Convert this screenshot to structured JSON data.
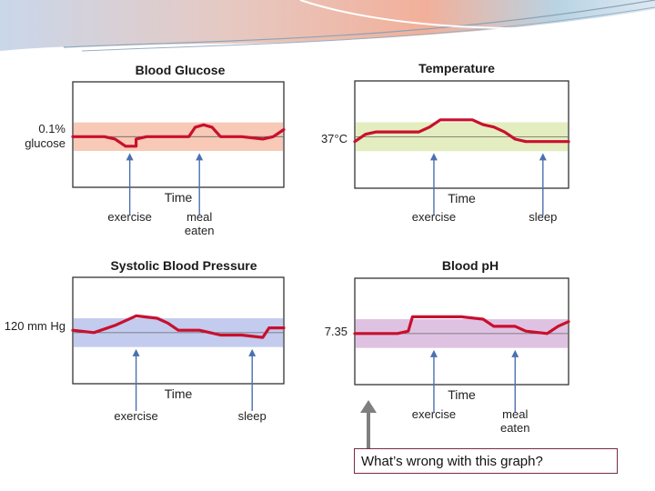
{
  "slide": {
    "question": "What’s wrong with this graph?",
    "colors": {
      "curve": "#c8102e",
      "band_glucose": "#f7c9b6",
      "band_temperature": "#e3edc0",
      "band_pressure": "#c3cbee",
      "band_ph": "#dfc2e2",
      "arrow": "#4a70b0",
      "pointer_arrow": "#7f7f7f"
    }
  },
  "panels": [
    {
      "id": "glucose",
      "title": "Blood Glucose",
      "set_point_label_line1": "0.1%",
      "set_point_label_line2": "glucose",
      "axis_label": "Time",
      "events": [
        {
          "label_line1": "exercise",
          "label_line2": "",
          "t": 0.27
        },
        {
          "label_line1": "meal",
          "label_line2": "eaten",
          "t": 0.6
        }
      ],
      "chart_data": {
        "type": "line",
        "title": "Blood Glucose",
        "xlabel": "Time",
        "ylabel": "0.1% glucose",
        "ylim": [
          -1,
          1
        ],
        "x": [
          0,
          0.15,
          0.2,
          0.25,
          0.3,
          0.3,
          0.35,
          0.45,
          0.55,
          0.58,
          0.62,
          0.66,
          0.7,
          0.8,
          0.9,
          0.95,
          1.0
        ],
        "y": [
          0,
          0,
          -0.05,
          -0.2,
          -0.2,
          -0.05,
          0,
          0,
          0,
          0.2,
          0.25,
          0.2,
          0,
          0,
          -0.05,
          0,
          0.15
        ],
        "band": [
          -0.3,
          0.3
        ]
      }
    },
    {
      "id": "temperature",
      "title": "Temperature",
      "set_point_label_line1": "37°C",
      "set_point_label_line2": "",
      "axis_label": "Time",
      "events": [
        {
          "label_line1": "exercise",
          "label_line2": "",
          "t": 0.37
        },
        {
          "label_line1": "sleep",
          "label_line2": "",
          "t": 0.88
        }
      ],
      "chart_data": {
        "type": "line",
        "title": "Temperature",
        "xlabel": "Time",
        "ylabel": "37°C",
        "ylim": [
          -1,
          1
        ],
        "x": [
          0,
          0.05,
          0.1,
          0.3,
          0.35,
          0.4,
          0.55,
          0.6,
          0.65,
          0.7,
          0.75,
          0.8,
          1.0
        ],
        "y": [
          -0.1,
          0.05,
          0.1,
          0.1,
          0.2,
          0.35,
          0.35,
          0.25,
          0.2,
          0.1,
          -0.05,
          -0.1,
          -0.1
        ],
        "band": [
          -0.3,
          0.3
        ]
      }
    },
    {
      "id": "pressure",
      "title": "Systolic Blood Pressure",
      "set_point_label_line1": "120 mm Hg",
      "set_point_label_line2": "",
      "axis_label": "Time",
      "events": [
        {
          "label_line1": "exercise",
          "label_line2": "",
          "t": 0.3
        },
        {
          "label_line1": "sleep",
          "label_line2": "",
          "t": 0.85
        }
      ],
      "chart_data": {
        "type": "line",
        "title": "Systolic Blood Pressure",
        "xlabel": "Time",
        "ylabel": "120 mm Hg",
        "ylim": [
          -1,
          1
        ],
        "x": [
          0,
          0.1,
          0.2,
          0.3,
          0.4,
          0.45,
          0.5,
          0.6,
          0.65,
          0.7,
          0.8,
          0.9,
          0.93,
          1.0
        ],
        "y": [
          0.05,
          0.0,
          0.15,
          0.35,
          0.3,
          0.2,
          0.05,
          0.05,
          0.0,
          -0.05,
          -0.05,
          -0.1,
          0.1,
          0.1
        ],
        "band": [
          -0.3,
          0.3
        ]
      }
    },
    {
      "id": "ph",
      "title": "Blood pH",
      "set_point_label_line1": "7.35",
      "set_point_label_line2": "",
      "axis_label": "Time",
      "events": [
        {
          "label_line1": "exercise",
          "label_line2": "",
          "t": 0.37
        },
        {
          "label_line1": "meal",
          "label_line2": "eaten",
          "t": 0.75
        }
      ],
      "chart_data": {
        "type": "line",
        "title": "Blood pH",
        "xlabel": "Time",
        "ylabel": "7.35",
        "ylim": [
          -1,
          1
        ],
        "x": [
          0,
          0.2,
          0.25,
          0.27,
          0.5,
          0.6,
          0.65,
          0.75,
          0.8,
          0.9,
          0.95,
          1.0
        ],
        "y": [
          0,
          0,
          0.05,
          0.35,
          0.35,
          0.3,
          0.15,
          0.15,
          0.05,
          0.0,
          0.15,
          0.25
        ],
        "band": [
          -0.3,
          0.3
        ]
      }
    }
  ]
}
